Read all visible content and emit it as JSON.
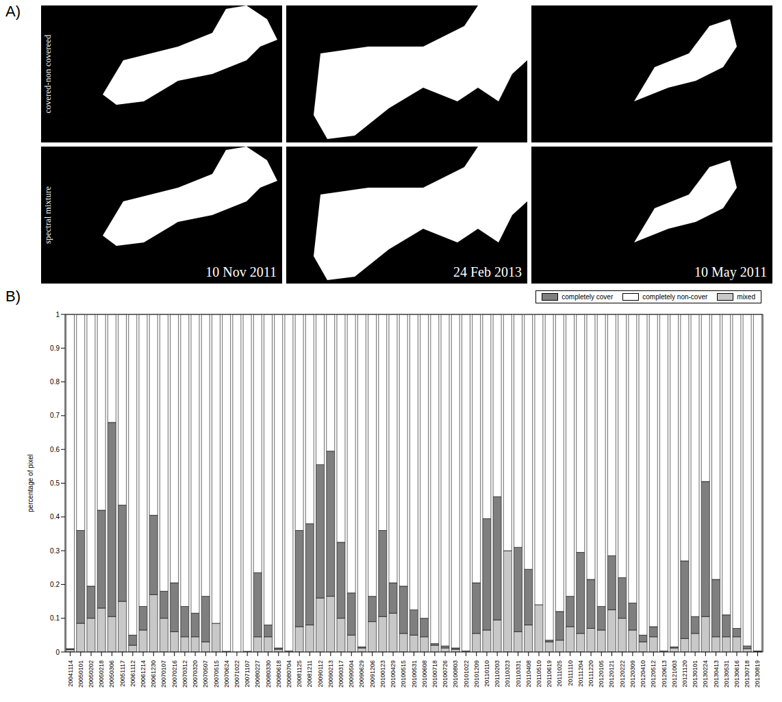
{
  "chart_data": {
    "type": "bar",
    "title": "B)",
    "stacked": true,
    "legend": "top-right",
    "grid": false,
    "ylabel": "percentage of pixel",
    "categories": [
      "20041114",
      "20050101",
      "20050202",
      "20050218",
      "20050306",
      "20051117",
      "20061112",
      "20061214",
      "20061230",
      "20070107",
      "20070216",
      "20070312",
      "20070320",
      "20070507",
      "20070515",
      "20070624",
      "20071022",
      "20071107",
      "20080227",
      "20080330",
      "20080618",
      "20080704",
      "20081125",
      "20081211",
      "20090112",
      "20090213",
      "20090317",
      "20090504",
      "20090629",
      "20091206",
      "20100123",
      "20100429",
      "20100515",
      "20100531",
      "20100608",
      "20100718",
      "20100726",
      "20100803",
      "20101022",
      "20101209",
      "20110110",
      "20110203",
      "20110323",
      "20110331",
      "20110408",
      "20110510",
      "20110619",
      "20111025",
      "20111110",
      "20111204",
      "20111220",
      "20120105",
      "20120121",
      "20120222",
      "20120309",
      "20120410",
      "20120512",
      "20120613",
      "20121003",
      "20121120",
      "20130101",
      "20130224",
      "20130413",
      "20130531",
      "20130616",
      "20130718",
      "20130819"
    ],
    "series": [
      {
        "name": "completely cover",
        "color": "#7f7f7f",
        "values": [
          0.003,
          0.275,
          0.095,
          0.29,
          0.575,
          0.285,
          0.03,
          0.07,
          0.235,
          0.08,
          0.145,
          0.09,
          0.07,
          0.135,
          0,
          0,
          0,
          0,
          0.19,
          0.035,
          0.004,
          0,
          0.285,
          0.3,
          0.395,
          0.43,
          0.225,
          0.125,
          0.003,
          0.075,
          0.255,
          0.09,
          0.14,
          0.075,
          0.055,
          0.005,
          0.006,
          0.004,
          0,
          0.15,
          0.33,
          0.365,
          0,
          0.25,
          0.165,
          0,
          0.005,
          0.085,
          0.09,
          0.24,
          0.145,
          0.07,
          0.16,
          0.12,
          0.08,
          0.02,
          0.03,
          0,
          0.003,
          0.23,
          0.05,
          0.4,
          0.17,
          0.065,
          0.025,
          0.008,
          0.001
        ]
      },
      {
        "name": "completely non-cover",
        "color": "#ffffff",
        "values": [
          0.99,
          0.64,
          0.805,
          0.58,
          0.32,
          0.565,
          0.95,
          0.865,
          0.595,
          0.82,
          0.795,
          0.865,
          0.885,
          0.835,
          0.915,
          0.998,
          1,
          0.998,
          0.765,
          0.92,
          0.988,
          0.997,
          0.64,
          0.62,
          0.445,
          0.405,
          0.675,
          0.825,
          0.985,
          0.835,
          0.64,
          0.795,
          0.805,
          0.875,
          0.9,
          0.975,
          0.982,
          0.988,
          0.997,
          0.795,
          0.605,
          0.54,
          0.7,
          0.69,
          0.755,
          0.86,
          0.965,
          0.88,
          0.835,
          0.705,
          0.785,
          0.865,
          0.715,
          0.78,
          0.855,
          0.95,
          0.925,
          0.997,
          0.985,
          0.73,
          0.895,
          0.495,
          0.785,
          0.89,
          0.93,
          0.982,
          0.997
        ]
      },
      {
        "name": "mixed",
        "color": "#c8c8c8",
        "values": [
          0.007,
          0.085,
          0.1,
          0.13,
          0.105,
          0.15,
          0.02,
          0.065,
          0.17,
          0.1,
          0.06,
          0.045,
          0.045,
          0.03,
          0.085,
          0.002,
          0,
          0.002,
          0.045,
          0.045,
          0.008,
          0.003,
          0.075,
          0.08,
          0.16,
          0.165,
          0.1,
          0.05,
          0.012,
          0.09,
          0.105,
          0.115,
          0.055,
          0.05,
          0.045,
          0.02,
          0.012,
          0.008,
          0.003,
          0.055,
          0.065,
          0.095,
          0.3,
          0.06,
          0.08,
          0.14,
          0.03,
          0.035,
          0.075,
          0.055,
          0.07,
          0.065,
          0.125,
          0.1,
          0.065,
          0.03,
          0.045,
          0.003,
          0.012,
          0.04,
          0.055,
          0.105,
          0.045,
          0.045,
          0.045,
          0.01,
          0.002
        ]
      }
    ],
    "ylim": [
      0,
      1
    ],
    "yticks": [
      0,
      0.1,
      0.2,
      0.3,
      0.4,
      0.5,
      0.6,
      0.7,
      0.8,
      0.9,
      1
    ]
  },
  "panel_a": {
    "label": "A)",
    "row_labels": [
      "covered-non covereed",
      "spectral mixture"
    ],
    "dates": [
      "10 Nov 2011",
      "24 Feb 2013",
      "10 May 2011"
    ]
  }
}
